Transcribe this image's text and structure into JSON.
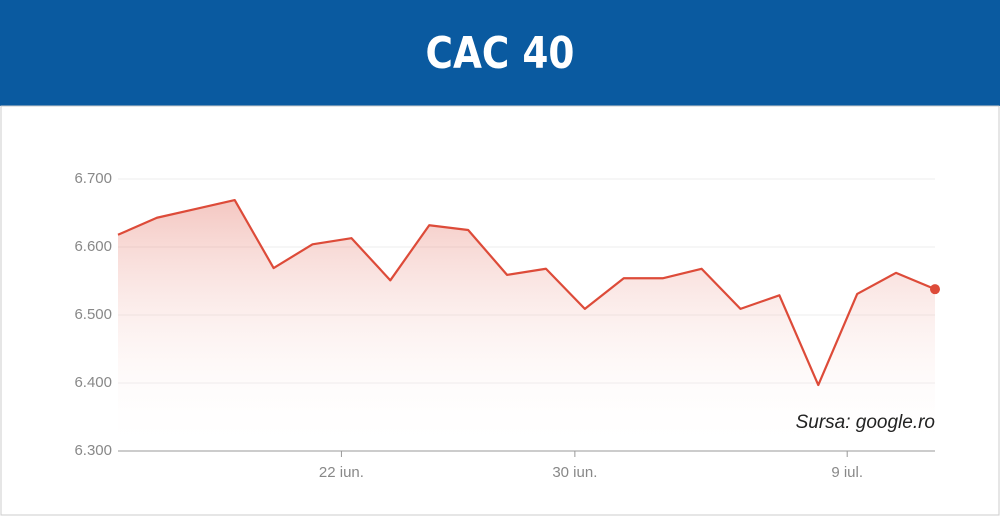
{
  "chart_data": {
    "type": "area-line",
    "title": "CAC 40",
    "annotation": "Sursa: google.ro",
    "categories": [
      null,
      null,
      null,
      null,
      null,
      null,
      "22 iun.",
      null,
      null,
      null,
      null,
      null,
      "30 iun.",
      null,
      null,
      null,
      null,
      null,
      null,
      "9 iul.",
      null,
      null
    ],
    "values": [
      6618,
      6643,
      6656,
      6669,
      6569,
      6604,
      6613,
      6551,
      6632,
      6625,
      6559,
      6568,
      6509,
      6554,
      6554,
      6568,
      6509,
      6529,
      6397,
      6531,
      6562,
      6538
    ],
    "color": "#dd4b39",
    "ylim": [
      6300,
      6700
    ],
    "yticks": [
      {
        "value": 6300,
        "label": "6.300"
      },
      {
        "value": 6400,
        "label": "6.400"
      },
      {
        "value": 6500,
        "label": "6.500"
      },
      {
        "value": 6600,
        "label": "6.600"
      },
      {
        "value": 6700,
        "label": "6.700"
      }
    ],
    "grid": true
  }
}
